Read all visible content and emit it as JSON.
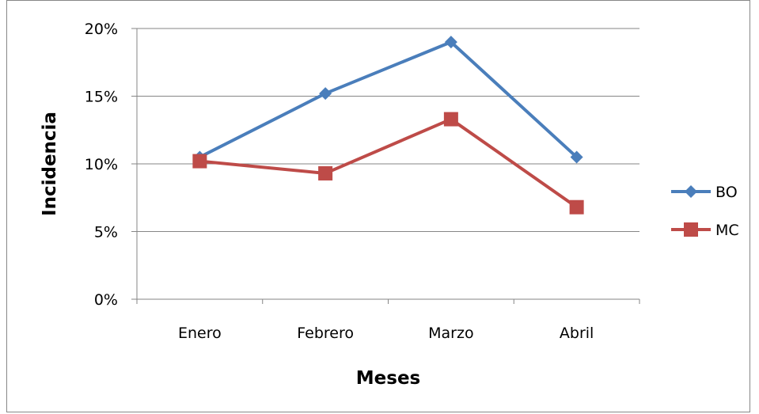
{
  "chart_data": {
    "type": "line",
    "categories": [
      "Enero",
      "Febrero",
      "Marzo",
      "Abril"
    ],
    "series": [
      {
        "name": "BO",
        "values": [
          0.105,
          0.152,
          0.19,
          0.105
        ],
        "color": "#4A7EBB",
        "marker": "diamond"
      },
      {
        "name": "MC",
        "values": [
          0.102,
          0.093,
          0.133,
          0.068
        ],
        "color": "#BE4B48",
        "marker": "square"
      }
    ],
    "title": "",
    "xlabel": "Meses",
    "ylabel": "Incidencia",
    "ylim": [
      0,
      0.2
    ],
    "yticks": [
      0,
      0.05,
      0.1,
      0.15,
      0.2
    ],
    "ytick_labels": [
      "0%",
      "5%",
      "10%",
      "15%",
      "20%"
    ],
    "grid": true,
    "legend_position": "right",
    "gridline_color": "#868686"
  }
}
